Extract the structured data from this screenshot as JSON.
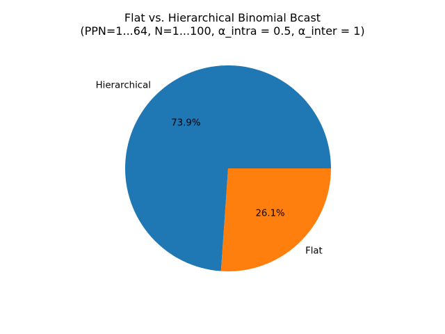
{
  "chart_data": {
    "type": "pie",
    "title": "Flat vs. Hierarchical Binomial Bcast",
    "subtitle": "(PPN=1...64, N=1...100, α_intra = 0.5, α_inter = 1)",
    "slices": [
      {
        "label": "Flat",
        "value": 26.1,
        "pct_label": "26.1%",
        "color": "#ff7f0e"
      },
      {
        "label": "Hierarchical",
        "value": 73.9,
        "pct_label": "73.9%",
        "color": "#1f77b4"
      }
    ],
    "start_angle_deg": 0,
    "direction": "clockwise"
  }
}
